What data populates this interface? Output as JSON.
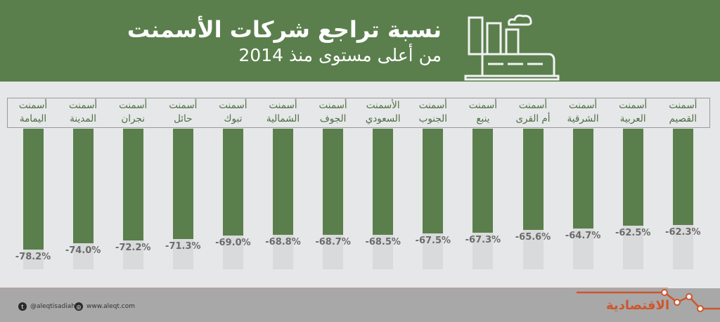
{
  "header": {
    "title": "نسبة تراجع شركات الأسمنت",
    "subtitle": "من أعلى مستوى منذ 2014",
    "icon": "factory-icon"
  },
  "chart_data": {
    "type": "bar",
    "title": "نسبة تراجع شركات الأسمنت من أعلى مستوى منذ 2014",
    "xlabel": "",
    "ylabel": "",
    "unit": "%",
    "categories": [
      "أسمنت اليمامة",
      "أسمنت المدينة",
      "أسمنت نجران",
      "أسمنت حائل",
      "أسمنت تبوك",
      "أسمنت الشمالية",
      "أسمنت الجوف",
      "الأسمنت السعودي",
      "أسمنت الجنوب",
      "أسمنت ينبع",
      "أسمنت أم القرى",
      "أسمنت الشرقية",
      "أسمنت العربية",
      "أسمنت القصيم"
    ],
    "values": [
      -78.2,
      -74.0,
      -72.2,
      -71.3,
      -69.0,
      -68.8,
      -68.7,
      -68.5,
      -67.5,
      -67.3,
      -65.6,
      -64.7,
      -62.5,
      -62.3
    ],
    "grid": false,
    "legend": null
  },
  "bars": [
    {
      "l1": "أسمنت",
      "l2": "اليمامة",
      "v": "-78.2%"
    },
    {
      "l1": "أسمنت",
      "l2": "المدينة",
      "v": "-74.0%"
    },
    {
      "l1": "أسمنت",
      "l2": "نجران",
      "v": "-72.2%"
    },
    {
      "l1": "أسمنت",
      "l2": "حائل",
      "v": "-71.3%"
    },
    {
      "l1": "أسمنت",
      "l2": "تبوك",
      "v": "-69.0%"
    },
    {
      "l1": "أسمنت",
      "l2": "الشمالية",
      "v": "-68.8%"
    },
    {
      "l1": "أسمنت",
      "l2": "الجوف",
      "v": "-68.7%"
    },
    {
      "l1": "الأسمنت",
      "l2": "السعودي",
      "v": "-68.5%"
    },
    {
      "l1": "أسمنت",
      "l2": "الجنوب",
      "v": "-67.5%"
    },
    {
      "l1": "أسمنت",
      "l2": "ينبع",
      "v": "-67.3%"
    },
    {
      "l1": "أسمنت",
      "l2": "أم القرى",
      "v": "-65.6%"
    },
    {
      "l1": "أسمنت",
      "l2": "الشرقية",
      "v": "-64.7%"
    },
    {
      "l1": "أسمنت",
      "l2": "العربية",
      "v": "-62.5%"
    },
    {
      "l1": "أسمنت",
      "l2": "القصيم",
      "v": "-62.3%"
    }
  ],
  "footer": {
    "twitter": "@aleqtisadiah",
    "website": "www.aleqt.com",
    "logo": "الاقتصادية"
  },
  "colors": {
    "bar": "#5a7f4c",
    "header": "#5a7f4c",
    "accent": "#d0552c"
  }
}
